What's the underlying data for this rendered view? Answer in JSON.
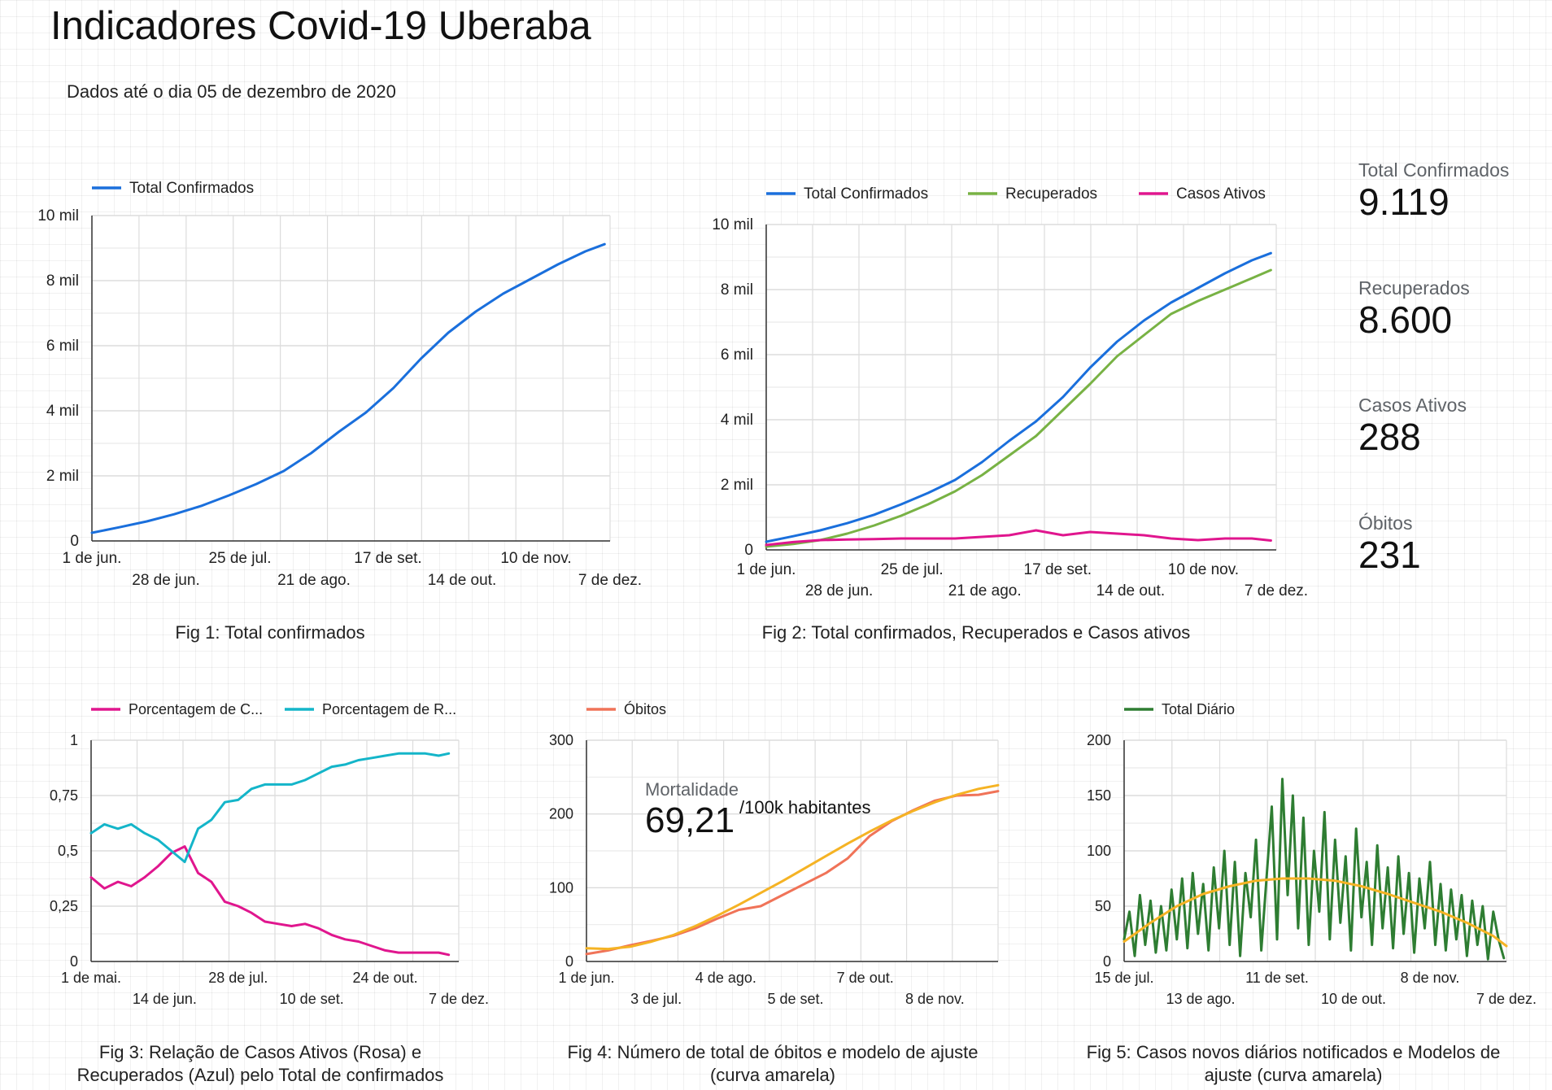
{
  "page": {
    "title": "Indicadores Covid-19 Uberaba",
    "subtitle": "Dados até o dia 05 de dezembro de 2020"
  },
  "colors": {
    "total": "#1a6fdc",
    "recuperados": "#78b244",
    "ativos": "#e0168e",
    "rel_ativos": "#e0168e",
    "rel_recuperados": "#14b5c9",
    "obitos": "#f07358",
    "ajuste": "#f5b324",
    "diario": "#2e7d32"
  },
  "kpis": [
    {
      "label": "Total Confirmados",
      "value": "9.119"
    },
    {
      "label": "Recuperados",
      "value": "8.600"
    },
    {
      "label": "Casos Ativos",
      "value": "288"
    },
    {
      "label": "Óbitos",
      "value": "231"
    }
  ],
  "mortality": {
    "label": "Mortalidade",
    "value": "69,21",
    "unit": "/100k habitantes"
  },
  "captions": {
    "fig1": "Fig 1: Total confirmados",
    "fig2": "Fig 2:  Total confirmados, Recuperados e Casos ativos",
    "fig3_line1": "Fig 3:  Relação de Casos Ativos (Rosa) e",
    "fig3_line2": "Recuperados (Azul)  pelo Total de confirmados",
    "fig4_line1": "Fig 4:  Número de total de óbitos e modelo de ajuste",
    "fig4_line2": "(curva amarela)",
    "fig5_line1": "Fig 5:  Casos novos diários notificados e Modelos de",
    "fig5_line2": "ajuste (curva amarela)"
  },
  "chart_data": [
    {
      "id": "fig1",
      "type": "line",
      "x_range_days": [
        0,
        189
      ],
      "ylim": [
        0,
        10000
      ],
      "y_ticks": [
        {
          "v": 0,
          "label": "0"
        },
        {
          "v": 2000,
          "label": "2 mil"
        },
        {
          "v": 4000,
          "label": "4 mil"
        },
        {
          "v": 6000,
          "label": "6 mil"
        },
        {
          "v": 8000,
          "label": "8 mil"
        },
        {
          "v": 10000,
          "label": "10 mil"
        }
      ],
      "x_ticks": [
        {
          "d": 0,
          "label": "1 de jun.",
          "row": 0
        },
        {
          "d": 27,
          "label": "28 de jun.",
          "row": 1
        },
        {
          "d": 54,
          "label": "25 de jul.",
          "row": 0
        },
        {
          "d": 81,
          "label": "21 de ago.",
          "row": 1
        },
        {
          "d": 108,
          "label": "17 de set.",
          "row": 0
        },
        {
          "d": 135,
          "label": "14 de out.",
          "row": 1
        },
        {
          "d": 162,
          "label": "10 de nov.",
          "row": 0
        },
        {
          "d": 189,
          "label": "7 de dez.",
          "row": 1
        }
      ],
      "series": [
        {
          "name": "Total Confirmados",
          "color_key": "total",
          "x": [
            0,
            10,
            20,
            30,
            40,
            50,
            60,
            70,
            80,
            90,
            100,
            110,
            120,
            130,
            140,
            150,
            160,
            170,
            180,
            187
          ],
          "y": [
            250,
            420,
            600,
            820,
            1080,
            1400,
            1750,
            2150,
            2700,
            3350,
            3950,
            4700,
            5600,
            6400,
            7050,
            7600,
            8050,
            8500,
            8900,
            9119
          ]
        }
      ]
    },
    {
      "id": "fig2",
      "type": "line",
      "x_range_days": [
        0,
        189
      ],
      "ylim": [
        0,
        10000
      ],
      "y_ticks": [
        {
          "v": 0,
          "label": "0"
        },
        {
          "v": 2000,
          "label": "2 mil"
        },
        {
          "v": 4000,
          "label": "4 mil"
        },
        {
          "v": 6000,
          "label": "6 mil"
        },
        {
          "v": 8000,
          "label": "8 mil"
        },
        {
          "v": 10000,
          "label": "10 mil"
        }
      ],
      "x_ticks": [
        {
          "d": 0,
          "label": "1 de jun.",
          "row": 0
        },
        {
          "d": 27,
          "label": "28 de jun.",
          "row": 1
        },
        {
          "d": 54,
          "label": "25 de jul.",
          "row": 0
        },
        {
          "d": 81,
          "label": "21 de ago.",
          "row": 1
        },
        {
          "d": 108,
          "label": "17 de set.",
          "row": 0
        },
        {
          "d": 135,
          "label": "14 de out.",
          "row": 1
        },
        {
          "d": 162,
          "label": "10 de nov.",
          "row": 0
        },
        {
          "d": 189,
          "label": "7 de dez.",
          "row": 1
        }
      ],
      "series": [
        {
          "name": "Total Confirmados",
          "color_key": "total",
          "x": [
            0,
            10,
            20,
            30,
            40,
            50,
            60,
            70,
            80,
            90,
            100,
            110,
            120,
            130,
            140,
            150,
            160,
            170,
            180,
            187
          ],
          "y": [
            250,
            420,
            600,
            820,
            1080,
            1400,
            1750,
            2150,
            2700,
            3350,
            3950,
            4700,
            5600,
            6400,
            7050,
            7600,
            8050,
            8500,
            8900,
            9119
          ]
        },
        {
          "name": "Recuperados",
          "color_key": "recuperados",
          "x": [
            0,
            10,
            20,
            30,
            40,
            50,
            60,
            70,
            80,
            90,
            100,
            110,
            120,
            130,
            140,
            150,
            160,
            170,
            180,
            187
          ],
          "y": [
            100,
            180,
            300,
            500,
            750,
            1050,
            1400,
            1800,
            2300,
            2900,
            3500,
            4300,
            5100,
            5950,
            6600,
            7250,
            7650,
            8000,
            8350,
            8600
          ]
        },
        {
          "name": "Casos Ativos",
          "color_key": "ativos",
          "x": [
            0,
            10,
            20,
            30,
            40,
            50,
            60,
            70,
            80,
            90,
            100,
            110,
            120,
            130,
            140,
            150,
            160,
            170,
            180,
            187
          ],
          "y": [
            150,
            240,
            300,
            320,
            330,
            350,
            350,
            350,
            400,
            450,
            600,
            450,
            550,
            500,
            450,
            350,
            300,
            350,
            350,
            288
          ]
        }
      ]
    },
    {
      "id": "fig3",
      "type": "line",
      "x_range_days": [
        0,
        220
      ],
      "ylim": [
        0,
        1
      ],
      "y_ticks": [
        {
          "v": 0,
          "label": "0"
        },
        {
          "v": 0.25,
          "label": "0,25"
        },
        {
          "v": 0.5,
          "label": "0,5"
        },
        {
          "v": 0.75,
          "label": "0,75"
        },
        {
          "v": 1,
          "label": "1"
        }
      ],
      "x_ticks": [
        {
          "d": 0,
          "label": "1 de mai.",
          "row": 0
        },
        {
          "d": 44,
          "label": "14 de jun.",
          "row": 1
        },
        {
          "d": 88,
          "label": "28 de jul.",
          "row": 0
        },
        {
          "d": 132,
          "label": "10 de set.",
          "row": 1
        },
        {
          "d": 176,
          "label": "24 de out.",
          "row": 0
        },
        {
          "d": 220,
          "label": "7 de dez.",
          "row": 1
        }
      ],
      "series": [
        {
          "name": "Porcentagem de C...",
          "color_key": "rel_ativos",
          "x": [
            0,
            8,
            16,
            24,
            32,
            40,
            48,
            56,
            64,
            72,
            80,
            88,
            96,
            104,
            112,
            120,
            128,
            136,
            144,
            152,
            160,
            168,
            176,
            184,
            192,
            200,
            208,
            214
          ],
          "y": [
            0.38,
            0.33,
            0.36,
            0.34,
            0.38,
            0.43,
            0.49,
            0.52,
            0.4,
            0.36,
            0.27,
            0.25,
            0.22,
            0.18,
            0.17,
            0.16,
            0.17,
            0.15,
            0.12,
            0.1,
            0.09,
            0.07,
            0.05,
            0.04,
            0.04,
            0.04,
            0.04,
            0.03
          ]
        },
        {
          "name": "Porcentagem de R...",
          "color_key": "rel_recuperados",
          "x": [
            0,
            8,
            16,
            24,
            32,
            40,
            48,
            56,
            64,
            72,
            80,
            88,
            96,
            104,
            112,
            120,
            128,
            136,
            144,
            152,
            160,
            168,
            176,
            184,
            192,
            200,
            208,
            214
          ],
          "y": [
            0.58,
            0.62,
            0.6,
            0.62,
            0.58,
            0.55,
            0.5,
            0.45,
            0.6,
            0.64,
            0.72,
            0.73,
            0.78,
            0.8,
            0.8,
            0.8,
            0.82,
            0.85,
            0.88,
            0.89,
            0.91,
            0.92,
            0.93,
            0.94,
            0.94,
            0.94,
            0.93,
            0.94
          ]
        }
      ]
    },
    {
      "id": "fig4",
      "type": "line",
      "x_range_days": [
        0,
        189
      ],
      "ylim": [
        0,
        300
      ],
      "y_ticks": [
        {
          "v": 0,
          "label": "0"
        },
        {
          "v": 100,
          "label": "100"
        },
        {
          "v": 200,
          "label": "200"
        },
        {
          "v": 300,
          "label": "300"
        }
      ],
      "x_ticks": [
        {
          "d": 0,
          "label": "1 de jun.",
          "row": 0
        },
        {
          "d": 32,
          "label": "3 de jul.",
          "row": 1
        },
        {
          "d": 64,
          "label": "4 de ago.",
          "row": 0
        },
        {
          "d": 96,
          "label": "5 de set.",
          "row": 1
        },
        {
          "d": 128,
          "label": "7 de out.",
          "row": 0
        },
        {
          "d": 160,
          "label": "8 de nov.",
          "row": 1
        }
      ],
      "series": [
        {
          "name": "Óbitos",
          "color_key": "obitos",
          "x": [
            0,
            10,
            20,
            30,
            40,
            50,
            60,
            70,
            80,
            90,
            100,
            110,
            120,
            130,
            140,
            150,
            160,
            170,
            180,
            189
          ],
          "y": [
            10,
            15,
            22,
            28,
            35,
            45,
            58,
            70,
            75,
            90,
            105,
            120,
            140,
            170,
            190,
            205,
            218,
            225,
            226,
            231
          ]
        },
        {
          "name": "Ajuste",
          "color_key": "ajuste",
          "x": [
            0,
            10,
            20,
            30,
            40,
            50,
            60,
            70,
            80,
            90,
            100,
            110,
            120,
            130,
            140,
            150,
            160,
            170,
            180,
            189
          ],
          "y": [
            18,
            17,
            20,
            27,
            36,
            48,
            62,
            77,
            93,
            109,
            126,
            143,
            160,
            176,
            191,
            204,
            216,
            226,
            234,
            239
          ]
        }
      ]
    },
    {
      "id": "fig5",
      "type": "line",
      "x_range_days": [
        0,
        145
      ],
      "ylim": [
        0,
        200
      ],
      "y_ticks": [
        {
          "v": 0,
          "label": "0"
        },
        {
          "v": 50,
          "label": "50"
        },
        {
          "v": 100,
          "label": "100"
        },
        {
          "v": 150,
          "label": "150"
        },
        {
          "v": 200,
          "label": "200"
        }
      ],
      "x_ticks": [
        {
          "d": 0,
          "label": "15 de jul.",
          "row": 0
        },
        {
          "d": 29,
          "label": "13 de ago.",
          "row": 1
        },
        {
          "d": 58,
          "label": "11 de set.",
          "row": 0
        },
        {
          "d": 87,
          "label": "10 de out.",
          "row": 1
        },
        {
          "d": 116,
          "label": "8 de nov.",
          "row": 0
        },
        {
          "d": 145,
          "label": "7 de dez.",
          "row": 1
        }
      ],
      "series": [
        {
          "name": "Total Diário",
          "color_key": "diario",
          "x": [
            0,
            2,
            4,
            6,
            8,
            10,
            12,
            14,
            16,
            18,
            20,
            22,
            24,
            26,
            28,
            30,
            32,
            34,
            36,
            38,
            40,
            42,
            44,
            46,
            48,
            50,
            52,
            54,
            56,
            58,
            60,
            62,
            64,
            66,
            68,
            70,
            72,
            74,
            76,
            78,
            80,
            82,
            84,
            86,
            88,
            90,
            92,
            94,
            96,
            98,
            100,
            102,
            104,
            106,
            108,
            110,
            112,
            114,
            116,
            118,
            120,
            122,
            124,
            126,
            128,
            130,
            132,
            134,
            136,
            138,
            140,
            142,
            144
          ],
          "y": [
            20,
            45,
            5,
            60,
            15,
            55,
            8,
            50,
            10,
            65,
            20,
            75,
            12,
            80,
            25,
            70,
            10,
            85,
            30,
            100,
            15,
            90,
            5,
            80,
            40,
            110,
            10,
            75,
            140,
            20,
            165,
            60,
            150,
            30,
            130,
            15,
            100,
            45,
            135,
            20,
            110,
            35,
            95,
            10,
            120,
            40,
            90,
            15,
            105,
            30,
            85,
            12,
            95,
            25,
            80,
            8,
            75,
            30,
            90,
            15,
            70,
            10,
            65,
            20,
            60,
            5,
            55,
            15,
            50,
            2,
            45,
            20,
            3
          ]
        },
        {
          "name": "Ajuste",
          "color_key": "ajuste",
          "x": [
            0,
            10,
            20,
            30,
            40,
            50,
            60,
            70,
            80,
            90,
            100,
            110,
            120,
            130,
            140,
            145
          ],
          "y": [
            18,
            35,
            50,
            61,
            68,
            73,
            75,
            75,
            73,
            68,
            61,
            53,
            45,
            35,
            23,
            14
          ]
        }
      ]
    }
  ]
}
